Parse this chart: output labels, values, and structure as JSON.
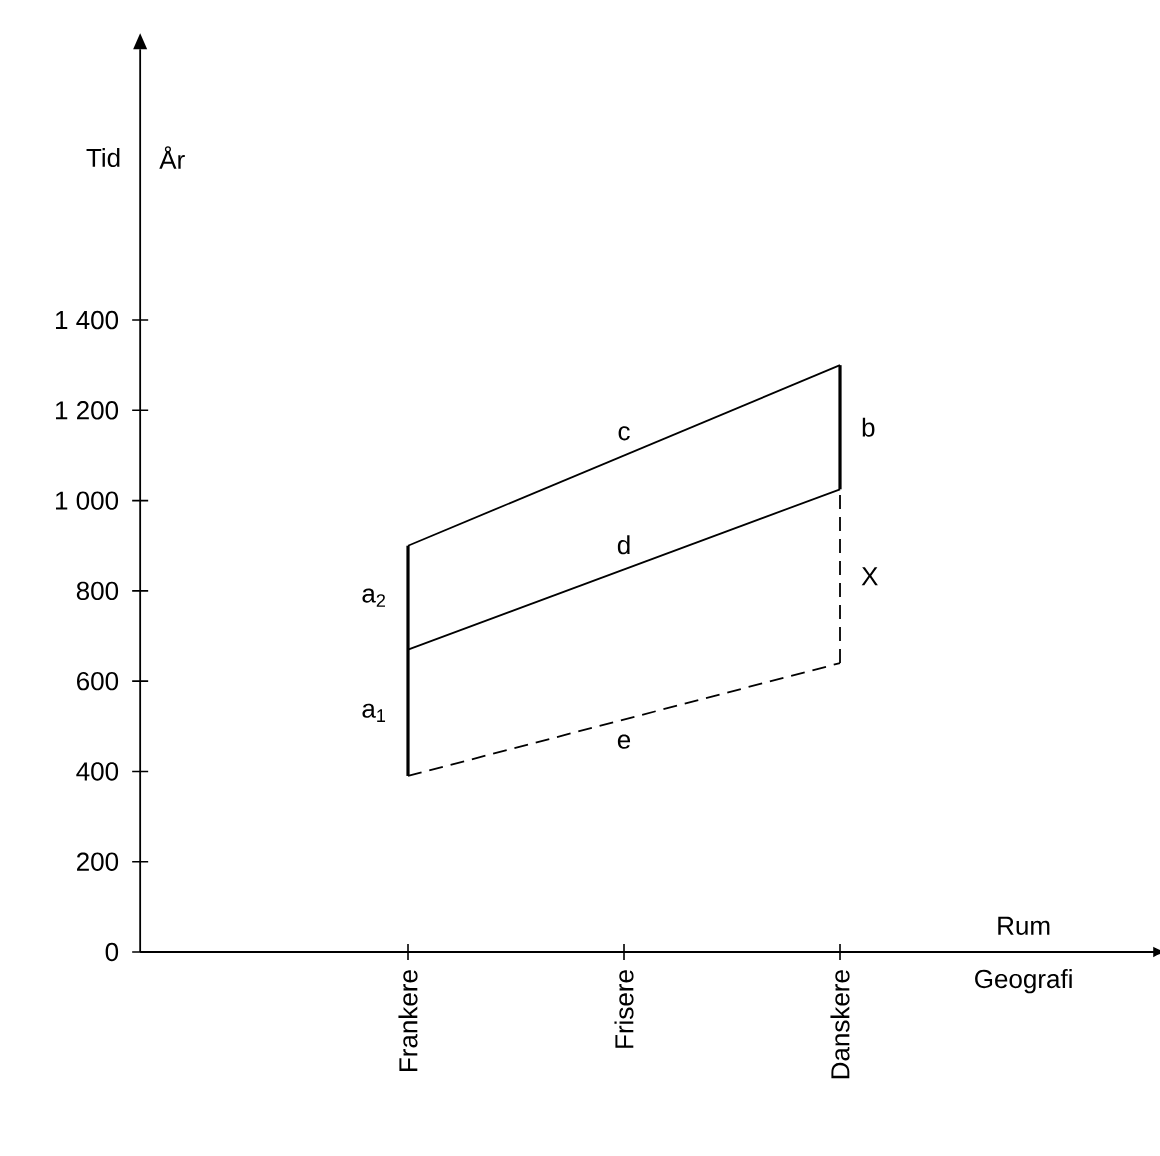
{
  "chart_data": {
    "type": "line",
    "ylabel": "Tid",
    "xlabel": "Rum",
    "annotations": [
      "År",
      "Geografi",
      {
        "text": "a$_{1}$",
        "x": "Frankere",
        "y": 530
      },
      {
        "text": "a$_{2}$",
        "x": "Frankere",
        "y": 785
      }
    ],
    "categories": [
      "Frankere",
      "Frisere",
      "Danskere"
    ],
    "ylim": [
      0,
      2000
    ],
    "yticks": [
      0,
      200,
      400,
      600,
      800,
      {
        "value": 1000,
        "label": "1 000"
      },
      {
        "value": 1200,
        "label": "1 200"
      },
      {
        "value": 1400,
        "label": "1 400"
      }
    ],
    "marker": "none",
    "line_style": "solid",
    "series": [
      {
        "name": "c",
        "color": "#000000",
        "x": [
          "Frankere",
          "Danskere"
        ],
        "values": [
          900,
          1300
        ]
      },
      {
        "name": "d",
        "color": "#000000",
        "x": [
          "Frankere",
          "Danskere"
        ],
        "values": [
          670,
          1025
        ]
      },
      {
        "name": "e",
        "color": "#000000",
        "x": [
          "Frankere",
          "Danskere"
        ],
        "values": [
          390,
          640
        ],
        "line_style": "dashed"
      },
      {
        "color": "#000000",
        "x": [
          "Frankere",
          "Frankere",
          "Frankere"
        ],
        "values": [
          390,
          670,
          900
        ]
      },
      {
        "name": "b",
        "color": "#000000",
        "x": [
          "Danskere",
          "Danskere"
        ],
        "values": [
          1025,
          1300
        ]
      },
      {
        "name": "X",
        "color": "#000000",
        "x": [
          "Danskere",
          "Danskere"
        ],
        "values": [
          640,
          1025
        ],
        "line_style": "dashed"
      }
    ]
  }
}
